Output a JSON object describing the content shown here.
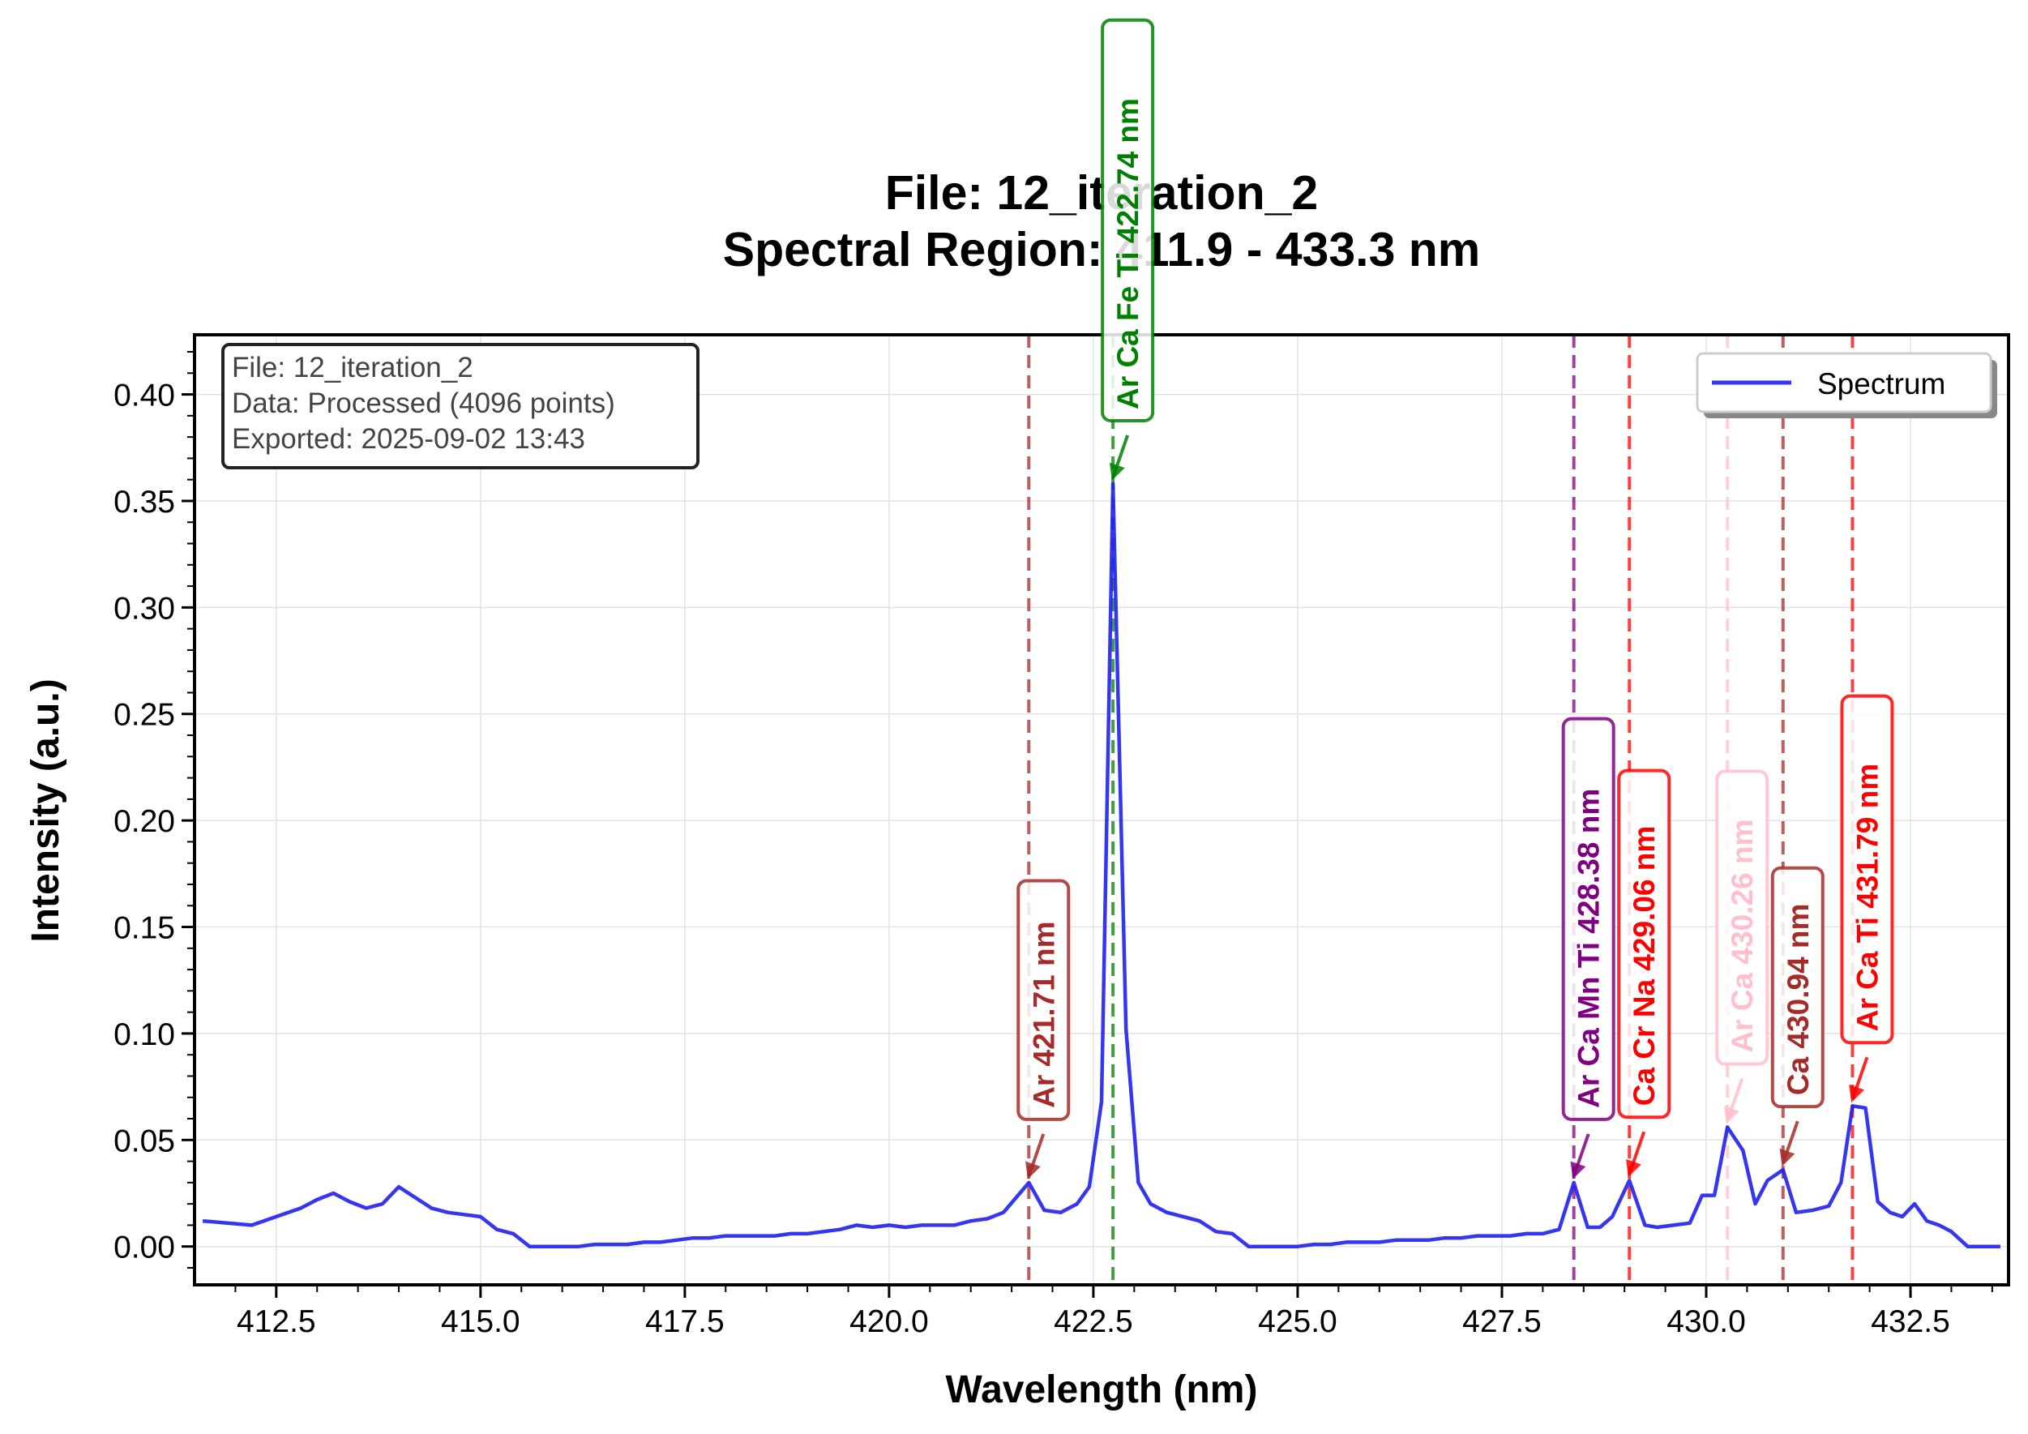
{
  "chart_data": {
    "type": "line",
    "title": "File: 12_iteration_2",
    "subtitle": "Spectral Region: 411.9 - 433.3 nm",
    "xlabel": "Wavelength (nm)",
    "ylabel": "Intensity (a.u.)",
    "xlim": [
      411.5,
      433.7
    ],
    "ylim": [
      -0.018,
      0.428
    ],
    "xticks": [
      412.5,
      415.0,
      417.5,
      420.0,
      422.5,
      425.0,
      427.5,
      430.0,
      432.5
    ],
    "xtick_labels": [
      "412.5",
      "415.0",
      "417.5",
      "420.0",
      "422.5",
      "425.0",
      "427.5",
      "430.0",
      "432.5"
    ],
    "yticks": [
      0.0,
      0.05,
      0.1,
      0.15,
      0.2,
      0.25,
      0.3,
      0.35,
      0.4
    ],
    "ytick_labels": [
      "0.00",
      "0.05",
      "0.10",
      "0.15",
      "0.20",
      "0.25",
      "0.30",
      "0.35",
      "0.40"
    ],
    "grid": true,
    "legend_position": "top-right",
    "info_box": {
      "lines": [
        "File: 12_iteration_2",
        "Data: Processed (4096 points)",
        "Exported: 2025-09-02 13:43"
      ]
    },
    "series": [
      {
        "name": "Spectrum",
        "color": "#2020ee",
        "x": [
          411.6,
          411.9,
          412.2,
          412.5,
          412.8,
          413.0,
          413.2,
          413.4,
          413.6,
          413.8,
          414.0,
          414.2,
          414.4,
          414.6,
          414.8,
          415.0,
          415.2,
          415.4,
          415.6,
          415.8,
          416.0,
          416.2,
          416.4,
          416.6,
          416.8,
          417.0,
          417.2,
          417.4,
          417.6,
          417.8,
          418.0,
          418.2,
          418.4,
          418.6,
          418.8,
          419.0,
          419.2,
          419.4,
          419.6,
          419.8,
          420.0,
          420.2,
          420.4,
          420.6,
          420.8,
          421.0,
          421.2,
          421.4,
          421.6,
          421.71,
          421.9,
          422.1,
          422.3,
          422.45,
          422.6,
          422.74,
          422.9,
          423.05,
          423.2,
          423.4,
          423.6,
          423.8,
          424.0,
          424.2,
          424.4,
          424.6,
          424.8,
          425.0,
          425.2,
          425.4,
          425.6,
          425.8,
          426.0,
          426.2,
          426.4,
          426.6,
          426.8,
          427.0,
          427.2,
          427.4,
          427.6,
          427.8,
          428.0,
          428.2,
          428.38,
          428.55,
          428.7,
          428.85,
          429.06,
          429.25,
          429.4,
          429.6,
          429.8,
          429.95,
          430.1,
          430.26,
          430.45,
          430.6,
          430.75,
          430.94,
          431.1,
          431.3,
          431.5,
          431.65,
          431.79,
          431.95,
          432.1,
          432.25,
          432.4,
          432.55,
          432.7,
          432.85,
          433.0,
          433.2,
          433.4,
          433.6
        ],
        "y": [
          0.012,
          0.011,
          0.01,
          0.014,
          0.018,
          0.022,
          0.025,
          0.021,
          0.018,
          0.02,
          0.028,
          0.023,
          0.018,
          0.016,
          0.015,
          0.014,
          0.008,
          0.006,
          0.0,
          0.0,
          0.0,
          0.0,
          0.001,
          0.001,
          0.001,
          0.002,
          0.002,
          0.003,
          0.004,
          0.004,
          0.005,
          0.005,
          0.005,
          0.005,
          0.006,
          0.006,
          0.007,
          0.008,
          0.01,
          0.009,
          0.01,
          0.009,
          0.01,
          0.01,
          0.01,
          0.012,
          0.013,
          0.016,
          0.025,
          0.03,
          0.017,
          0.016,
          0.02,
          0.028,
          0.068,
          0.358,
          0.102,
          0.03,
          0.02,
          0.016,
          0.014,
          0.012,
          0.007,
          0.006,
          0.0,
          0.0,
          0.0,
          0.0,
          0.001,
          0.001,
          0.002,
          0.002,
          0.002,
          0.003,
          0.003,
          0.003,
          0.004,
          0.004,
          0.005,
          0.005,
          0.005,
          0.006,
          0.006,
          0.008,
          0.03,
          0.009,
          0.009,
          0.014,
          0.031,
          0.01,
          0.009,
          0.01,
          0.011,
          0.024,
          0.024,
          0.056,
          0.045,
          0.02,
          0.031,
          0.036,
          0.016,
          0.017,
          0.019,
          0.03,
          0.066,
          0.065,
          0.021,
          0.016,
          0.014,
          0.02,
          0.012,
          0.01,
          0.007,
          0.0,
          0.0,
          0.0
        ]
      }
    ],
    "peaks": [
      {
        "wavelength": 421.71,
        "intensity": 0.03,
        "label": "Ar 421.71 nm",
        "color": "#a52a2a"
      },
      {
        "wavelength": 422.74,
        "intensity": 0.358,
        "label": "Ar Ca Fe Ti 422.74 nm",
        "color": "#008000"
      },
      {
        "wavelength": 428.38,
        "intensity": 0.03,
        "label": "Ar Ca Mn Ti 428.38 nm",
        "color": "#800080"
      },
      {
        "wavelength": 429.06,
        "intensity": 0.031,
        "label": "Ca Cr Na 429.06 nm",
        "color": "#ff0000"
      },
      {
        "wavelength": 430.26,
        "intensity": 0.056,
        "label": "Ar Ca 430.26 nm",
        "color": "#ffc0cb"
      },
      {
        "wavelength": 430.94,
        "intensity": 0.036,
        "label": "Ca 430.94 nm",
        "color": "#a52a2a"
      },
      {
        "wavelength": 431.79,
        "intensity": 0.066,
        "label": "Ar Ca Ti 431.79 nm",
        "color": "#ff0000"
      }
    ]
  }
}
